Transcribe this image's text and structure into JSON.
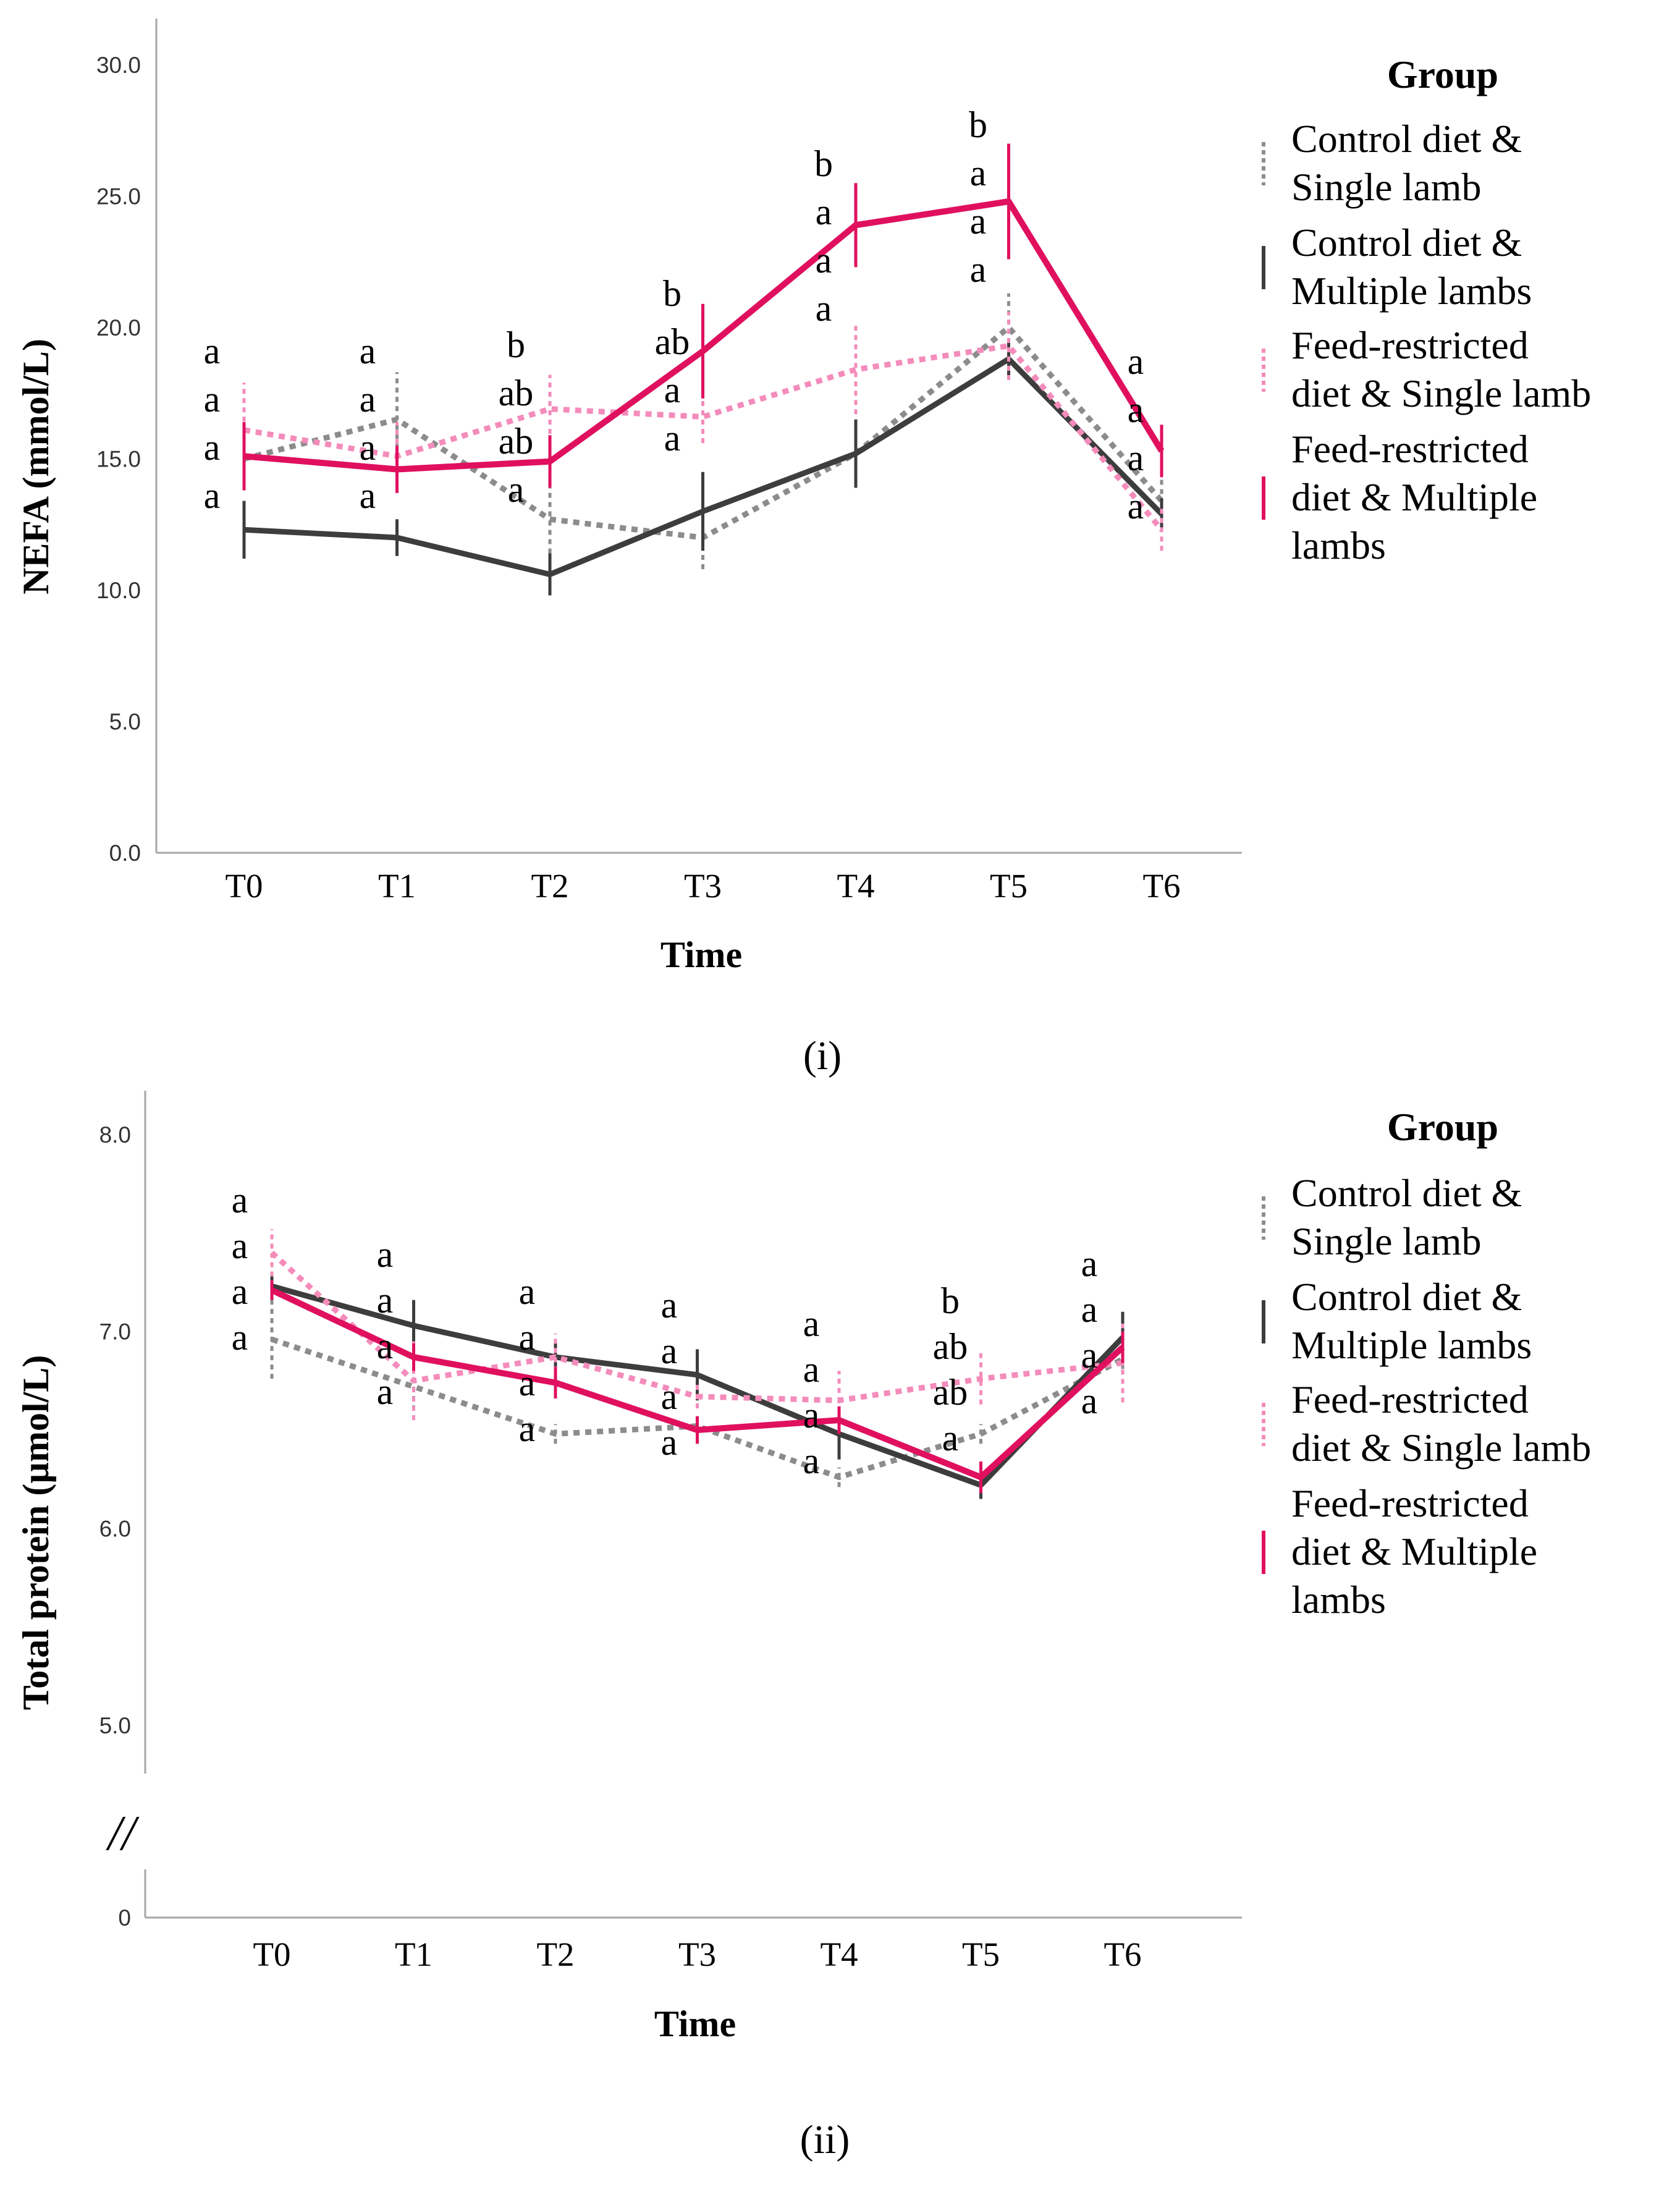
{
  "colors": {
    "control_single": "#8c8c8c",
    "control_multiple": "#3d3d3d",
    "restricted_single": "#f48cbb",
    "restricted_multiple": "#e0105f",
    "axis": "#a6a6a6"
  },
  "legend": {
    "title": "Group",
    "entries": [
      {
        "key": "control_single",
        "lines": [
          "Control diet &",
          "Single lamb"
        ]
      },
      {
        "key": "control_multiple",
        "lines": [
          "Control diet &",
          "Multiple lambs"
        ]
      },
      {
        "key": "restricted_single",
        "lines": [
          "Feed-restricted",
          "diet & Single lamb"
        ]
      },
      {
        "key": "restricted_multiple",
        "lines": [
          "Feed-restricted",
          "diet & Multiple",
          "lambs"
        ]
      }
    ]
  },
  "chart_data": [
    {
      "type": "line",
      "panel_label": "(i)",
      "xlabel": "Time",
      "ylabel": "NEFA (mmol/L)",
      "categories": [
        "T0",
        "T1",
        "T2",
        "T3",
        "T4",
        "T5",
        "T6"
      ],
      "ylim": [
        0,
        30
      ],
      "yticks": [
        "0.0",
        "5.0",
        "10.0",
        "15.0",
        "20.0",
        "25.0",
        "30.0"
      ],
      "axis_break": false,
      "grid": false,
      "legend_position": "right",
      "series": [
        {
          "key": "control_single",
          "name": "Control diet & Single lamb",
          "values": [
            15.0,
            16.5,
            12.7,
            12.0,
            15.2,
            20.0,
            13.4
          ],
          "err": [
            0,
            1.8,
            1.3,
            1.2,
            1.3,
            1.3,
            0.8
          ]
        },
        {
          "key": "control_multiple",
          "name": "Control diet & Multiple lambs",
          "values": [
            12.3,
            12.0,
            10.6,
            13.0,
            15.2,
            18.8,
            12.9
          ],
          "err": [
            1.1,
            0.7,
            0.8,
            1.5,
            1.3,
            0.8,
            0.6
          ]
        },
        {
          "key": "restricted_single",
          "name": "Feed-restricted diet & Single lamb",
          "values": [
            16.1,
            15.1,
            16.9,
            16.6,
            18.4,
            19.3,
            12.3
          ],
          "err": [
            1.8,
            1.3,
            1.3,
            1.0,
            1.7,
            1.3,
            0.8
          ]
        },
        {
          "key": "restricted_multiple",
          "name": "Feed-restricted diet & Multiple lambs",
          "values": [
            15.1,
            14.6,
            14.9,
            19.1,
            23.9,
            24.8,
            15.3
          ],
          "err": [
            1.3,
            0.9,
            1.0,
            1.8,
            1.6,
            2.2,
            1.0
          ]
        }
      ],
      "annotations": [
        {
          "x": 0,
          "texts": [
            "a",
            "a",
            "a",
            "a"
          ]
        },
        {
          "x": 1,
          "texts": [
            "a",
            "a",
            "a",
            "a"
          ]
        },
        {
          "x": 2,
          "texts": [
            "b",
            "ab",
            "ab",
            "a"
          ]
        },
        {
          "x": 3,
          "texts": [
            "b",
            "ab",
            "a",
            "a"
          ]
        },
        {
          "x": 4,
          "texts": [
            "b",
            "a",
            "a",
            "a"
          ]
        },
        {
          "x": 5,
          "texts": [
            "b",
            "a",
            "a",
            "a"
          ]
        },
        {
          "x": 6,
          "texts": [
            "a",
            "a",
            "a",
            "a"
          ]
        }
      ]
    },
    {
      "type": "line",
      "panel_label": "(ii)",
      "xlabel": "Time",
      "ylabel": "Total protein (µmol/L)",
      "categories": [
        "T0",
        "T1",
        "T2",
        "T3",
        "T4",
        "T5",
        "T6"
      ],
      "ylim": [
        5.0,
        8.0
      ],
      "yticks": [
        "5.0",
        "6.0",
        "7.0",
        "8.0"
      ],
      "axis_break": true,
      "break_mark": "//",
      "break_tick": "0",
      "grid": false,
      "legend_position": "right",
      "series": [
        {
          "key": "control_single",
          "name": "Control diet & Single lamb",
          "values": [
            6.96,
            6.72,
            6.48,
            6.52,
            6.26,
            6.48,
            6.86
          ],
          "err": [
            0.2,
            0.12,
            0.05,
            0.05,
            0.05,
            0.05,
            0.05
          ]
        },
        {
          "key": "control_multiple",
          "name": "Control diet & Multiple lambs",
          "values": [
            7.23,
            7.03,
            6.87,
            6.78,
            6.48,
            6.22,
            6.97
          ],
          "err": [
            0.05,
            0.13,
            0.08,
            0.13,
            0.13,
            0.07,
            0.13
          ]
        },
        {
          "key": "restricted_single",
          "name": "Feed-restricted diet & Single lamb",
          "values": [
            7.4,
            6.75,
            6.87,
            6.67,
            6.65,
            6.76,
            6.84
          ],
          "err": [
            0.12,
            0.2,
            0.12,
            0.06,
            0.15,
            0.13,
            0.2
          ]
        },
        {
          "key": "restricted_multiple",
          "name": "Feed-restricted diet & Multiple lambs",
          "values": [
            7.21,
            6.87,
            6.74,
            6.5,
            6.55,
            6.26,
            6.92
          ],
          "err": [
            0.05,
            0.07,
            0.08,
            0.07,
            0.07,
            0.08,
            0.08
          ]
        }
      ],
      "annotations": [
        {
          "x": 0,
          "texts": [
            "a",
            "a",
            "a",
            "a"
          ]
        },
        {
          "x": 1,
          "texts": [
            "a",
            "a",
            "a",
            "a"
          ]
        },
        {
          "x": 2,
          "texts": [
            "a",
            "a",
            "a",
            "a"
          ]
        },
        {
          "x": 3,
          "texts": [
            "a",
            "a",
            "a",
            "a"
          ]
        },
        {
          "x": 4,
          "texts": [
            "a",
            "a",
            "a",
            "a"
          ]
        },
        {
          "x": 5,
          "texts": [
            "b",
            "ab",
            "ab",
            "a"
          ]
        },
        {
          "x": 6,
          "texts": [
            "a",
            "a",
            "a",
            "a"
          ]
        }
      ]
    }
  ]
}
